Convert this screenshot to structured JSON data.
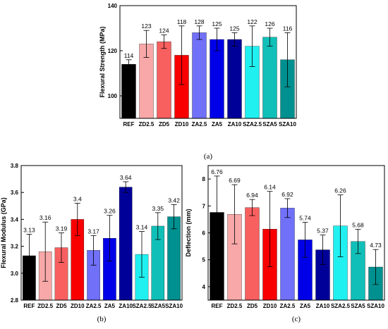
{
  "chart_data": [
    {
      "type": "bar",
      "panel_label": "(a)",
      "ylabel": "Flexural Strength (MPa)",
      "categories": [
        "REF",
        "ZD2.5",
        "ZD5",
        "ZD10",
        "ZA2.5",
        "ZA5",
        "ZA10",
        "SZA2.5",
        "SZA5",
        "SZA10"
      ],
      "values": [
        114,
        123,
        124,
        118,
        128,
        125,
        125,
        122,
        126,
        116
      ],
      "data_labels": [
        "114",
        "123",
        "124",
        "118",
        "128",
        "125",
        "125",
        "122",
        "126",
        "116"
      ],
      "errors": [
        2,
        6,
        3,
        13,
        3,
        5,
        3,
        9,
        4,
        12
      ],
      "ylim": [
        90,
        140
      ],
      "yticks": [
        100,
        120,
        140
      ],
      "yticks_labels": [
        "100",
        "120",
        "140"
      ],
      "colors": [
        "#000000",
        "#f8a8a8",
        "#f86060",
        "#f80000",
        "#7070f8",
        "#0000e8",
        "#000099",
        "#20f0f0",
        "#10c0b8",
        "#009090"
      ],
      "grid": false
    },
    {
      "type": "bar",
      "panel_label": "(b)",
      "ylabel": "Flexural Modulus (GPa)",
      "categories": [
        "REF",
        "ZD2.5",
        "ZD5",
        "ZD10",
        "ZA2.5",
        "ZA5",
        "ZA10",
        "SZA2.5",
        "SZA5",
        "SZA10"
      ],
      "values": [
        3.13,
        3.16,
        3.19,
        3.4,
        3.17,
        3.26,
        3.64,
        3.14,
        3.35,
        3.42
      ],
      "data_labels": [
        "3.13",
        "3.16",
        "3.19",
        "3.4",
        "3.17",
        "3.26",
        "3.64",
        "3.14",
        "3.35",
        "3.42"
      ],
      "errors": [
        0.16,
        0.22,
        0.11,
        0.12,
        0.11,
        0.17,
        0.04,
        0.17,
        0.1,
        0.09
      ],
      "ylim": [
        2.8,
        3.8
      ],
      "yticks": [
        2.8,
        3.0,
        3.2,
        3.4,
        3.6,
        3.8
      ],
      "yticks_labels": [
        "2.8",
        "3.0",
        "3.2",
        "3.4",
        "3.6",
        "3.8"
      ],
      "colors": [
        "#000000",
        "#f8a8a8",
        "#f86060",
        "#f80000",
        "#7070f8",
        "#0000e8",
        "#000099",
        "#20f0f0",
        "#10c0b8",
        "#009090"
      ],
      "grid": false
    },
    {
      "type": "bar",
      "panel_label": "(c)",
      "ylabel": "Deflection (mm)",
      "categories": [
        "REF",
        "ZD2.5",
        "ZD5",
        "ZD10",
        "ZA2.5",
        "ZA5",
        "ZA10",
        "SZA2.5",
        "SZA5",
        "SZA10"
      ],
      "values": [
        6.76,
        6.69,
        6.94,
        6.14,
        6.92,
        5.74,
        5.37,
        6.26,
        5.68,
        4.73
      ],
      "data_labels": [
        "6.76",
        "6.69",
        "6.94",
        "6.14",
        "6.92",
        "5.74",
        "5.37",
        "6.26",
        "5.68",
        "4.73"
      ],
      "errors": [
        1.35,
        1.1,
        0.3,
        1.4,
        0.35,
        0.65,
        0.55,
        1.15,
        0.45,
        0.65
      ],
      "ylim": [
        3.5,
        8.5
      ],
      "yticks": [
        4,
        5,
        6,
        7,
        8
      ],
      "yticks_labels": [
        "4",
        "5",
        "6",
        "7",
        "8"
      ],
      "colors": [
        "#000000",
        "#f8a8a8",
        "#f86060",
        "#f80000",
        "#7070f8",
        "#0000e8",
        "#000099",
        "#20f0f0",
        "#10c0b8",
        "#009090"
      ],
      "grid": false
    }
  ]
}
